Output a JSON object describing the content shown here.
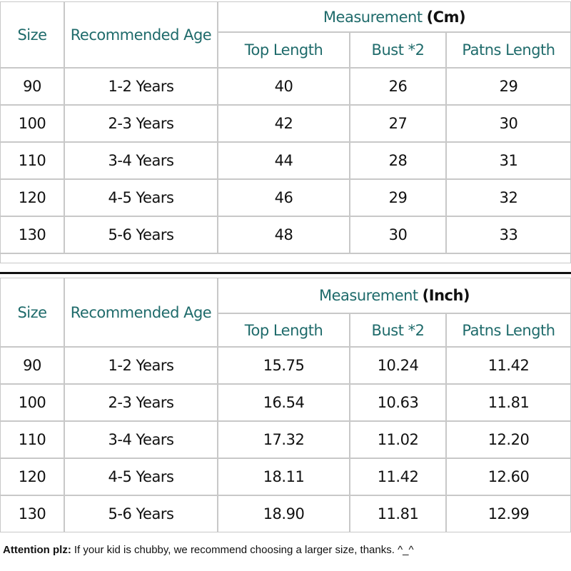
{
  "tables": [
    {
      "headers": {
        "size": "Size",
        "age": "Recommended Age",
        "group": "Measurement",
        "unit": "(Cm)",
        "columns": [
          "Top Length",
          "Bust *2",
          "Patns Length"
        ]
      },
      "rows": [
        [
          "90",
          "1-2 Years",
          "40",
          "26",
          "29"
        ],
        [
          "100",
          "2-3 Years",
          "42",
          "27",
          "30"
        ],
        [
          "110",
          "3-4 Years",
          "44",
          "28",
          "31"
        ],
        [
          "120",
          "4-5 Years",
          "46",
          "29",
          "32"
        ],
        [
          "130",
          "5-6 Years",
          "48",
          "30",
          "33"
        ]
      ]
    },
    {
      "headers": {
        "size": "Size",
        "age": "Recommended Age",
        "group": "Measurement",
        "unit": "(Inch)",
        "columns": [
          "Top Length",
          "Bust *2",
          "Patns Length"
        ]
      },
      "rows": [
        [
          "90",
          "1-2 Years",
          "15.75",
          "10.24",
          "11.42"
        ],
        [
          "100",
          "2-3 Years",
          "16.54",
          "10.63",
          "11.81"
        ],
        [
          "110",
          "3-4 Years",
          "17.32",
          "11.02",
          "12.20"
        ],
        [
          "120",
          "4-5 Years",
          "18.11",
          "11.42",
          "12.60"
        ],
        [
          "130",
          "5-6 Years",
          "18.90",
          "11.81",
          "12.99"
        ]
      ]
    }
  ],
  "note": {
    "label": "Attention plz:",
    "text": "If your kid is chubby, we recommend choosing a larger size, thanks. ^_^"
  }
}
